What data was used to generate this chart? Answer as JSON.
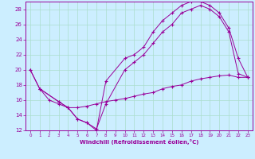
{
  "xlabel": "Windchill (Refroidissement éolien,°C)",
  "bg_color": "#cceeff",
  "grid_color": "#aaddcc",
  "line_color": "#990099",
  "xlim": [
    -0.5,
    23.5
  ],
  "ylim": [
    12,
    29
  ],
  "xticks": [
    0,
    1,
    2,
    3,
    4,
    5,
    6,
    7,
    8,
    9,
    10,
    11,
    12,
    13,
    14,
    15,
    16,
    17,
    18,
    19,
    20,
    21,
    22,
    23
  ],
  "yticks": [
    12,
    14,
    16,
    18,
    20,
    22,
    24,
    26,
    28
  ],
  "series1_x": [
    0,
    1,
    3,
    4,
    5,
    6,
    7,
    8,
    10,
    11,
    12,
    13,
    14,
    15,
    16,
    17,
    18,
    19,
    20,
    21,
    22,
    23
  ],
  "series1_y": [
    20.0,
    17.5,
    15.8,
    15.0,
    13.5,
    13.0,
    12.0,
    18.5,
    21.5,
    22.0,
    23.0,
    25.0,
    26.5,
    27.5,
    28.5,
    29.0,
    29.0,
    28.5,
    27.5,
    25.5,
    21.5,
    19.0
  ],
  "series2_x": [
    0,
    1,
    3,
    4,
    5,
    6,
    7,
    8,
    10,
    11,
    12,
    13,
    14,
    15,
    16,
    17,
    18,
    19,
    20,
    21,
    22,
    23
  ],
  "series2_y": [
    20.0,
    17.5,
    15.8,
    15.0,
    13.5,
    13.0,
    12.2,
    15.5,
    20.0,
    21.0,
    22.0,
    23.5,
    25.0,
    26.0,
    27.5,
    28.0,
    28.5,
    28.0,
    27.0,
    25.0,
    19.5,
    19.0
  ],
  "series3_x": [
    1,
    2,
    3,
    4,
    5,
    6,
    7,
    8,
    9,
    10,
    11,
    12,
    13,
    14,
    15,
    16,
    17,
    18,
    19,
    20,
    21,
    22,
    23
  ],
  "series3_y": [
    17.5,
    16.0,
    15.5,
    15.0,
    15.0,
    15.2,
    15.5,
    15.8,
    16.0,
    16.2,
    16.5,
    16.8,
    17.0,
    17.5,
    17.8,
    18.0,
    18.5,
    18.8,
    19.0,
    19.2,
    19.3,
    19.0,
    19.0
  ]
}
